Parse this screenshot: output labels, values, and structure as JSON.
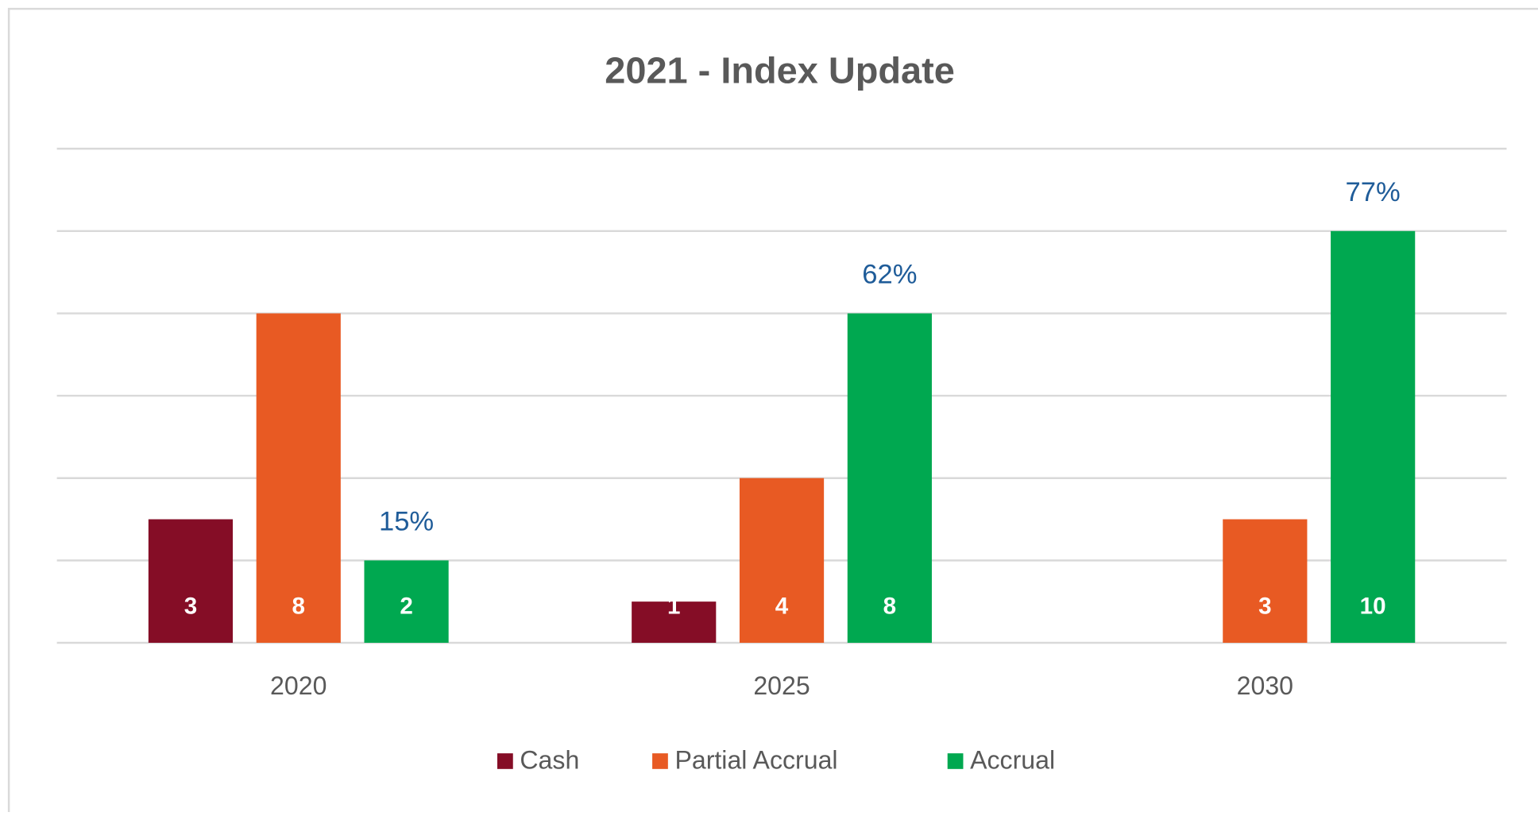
{
  "chart_data": {
    "type": "bar",
    "title": "2021 - Index Update",
    "categories": [
      "2020",
      "2025",
      "2030"
    ],
    "series": [
      {
        "name": "Cash",
        "color": "#850d26",
        "values": [
          3,
          1,
          null
        ]
      },
      {
        "name": "Partial Accrual",
        "color": "#e85a23",
        "values": [
          8,
          4,
          3
        ]
      },
      {
        "name": "Accrual",
        "color": "#00a850",
        "values": [
          2,
          8,
          10
        ]
      }
    ],
    "annotations": [
      "15%",
      "62%",
      "77%"
    ],
    "ylim": [
      0,
      12
    ],
    "yticks": [
      0,
      2,
      4,
      6,
      8,
      10,
      12
    ],
    "grid": true,
    "legend": "bottom"
  }
}
